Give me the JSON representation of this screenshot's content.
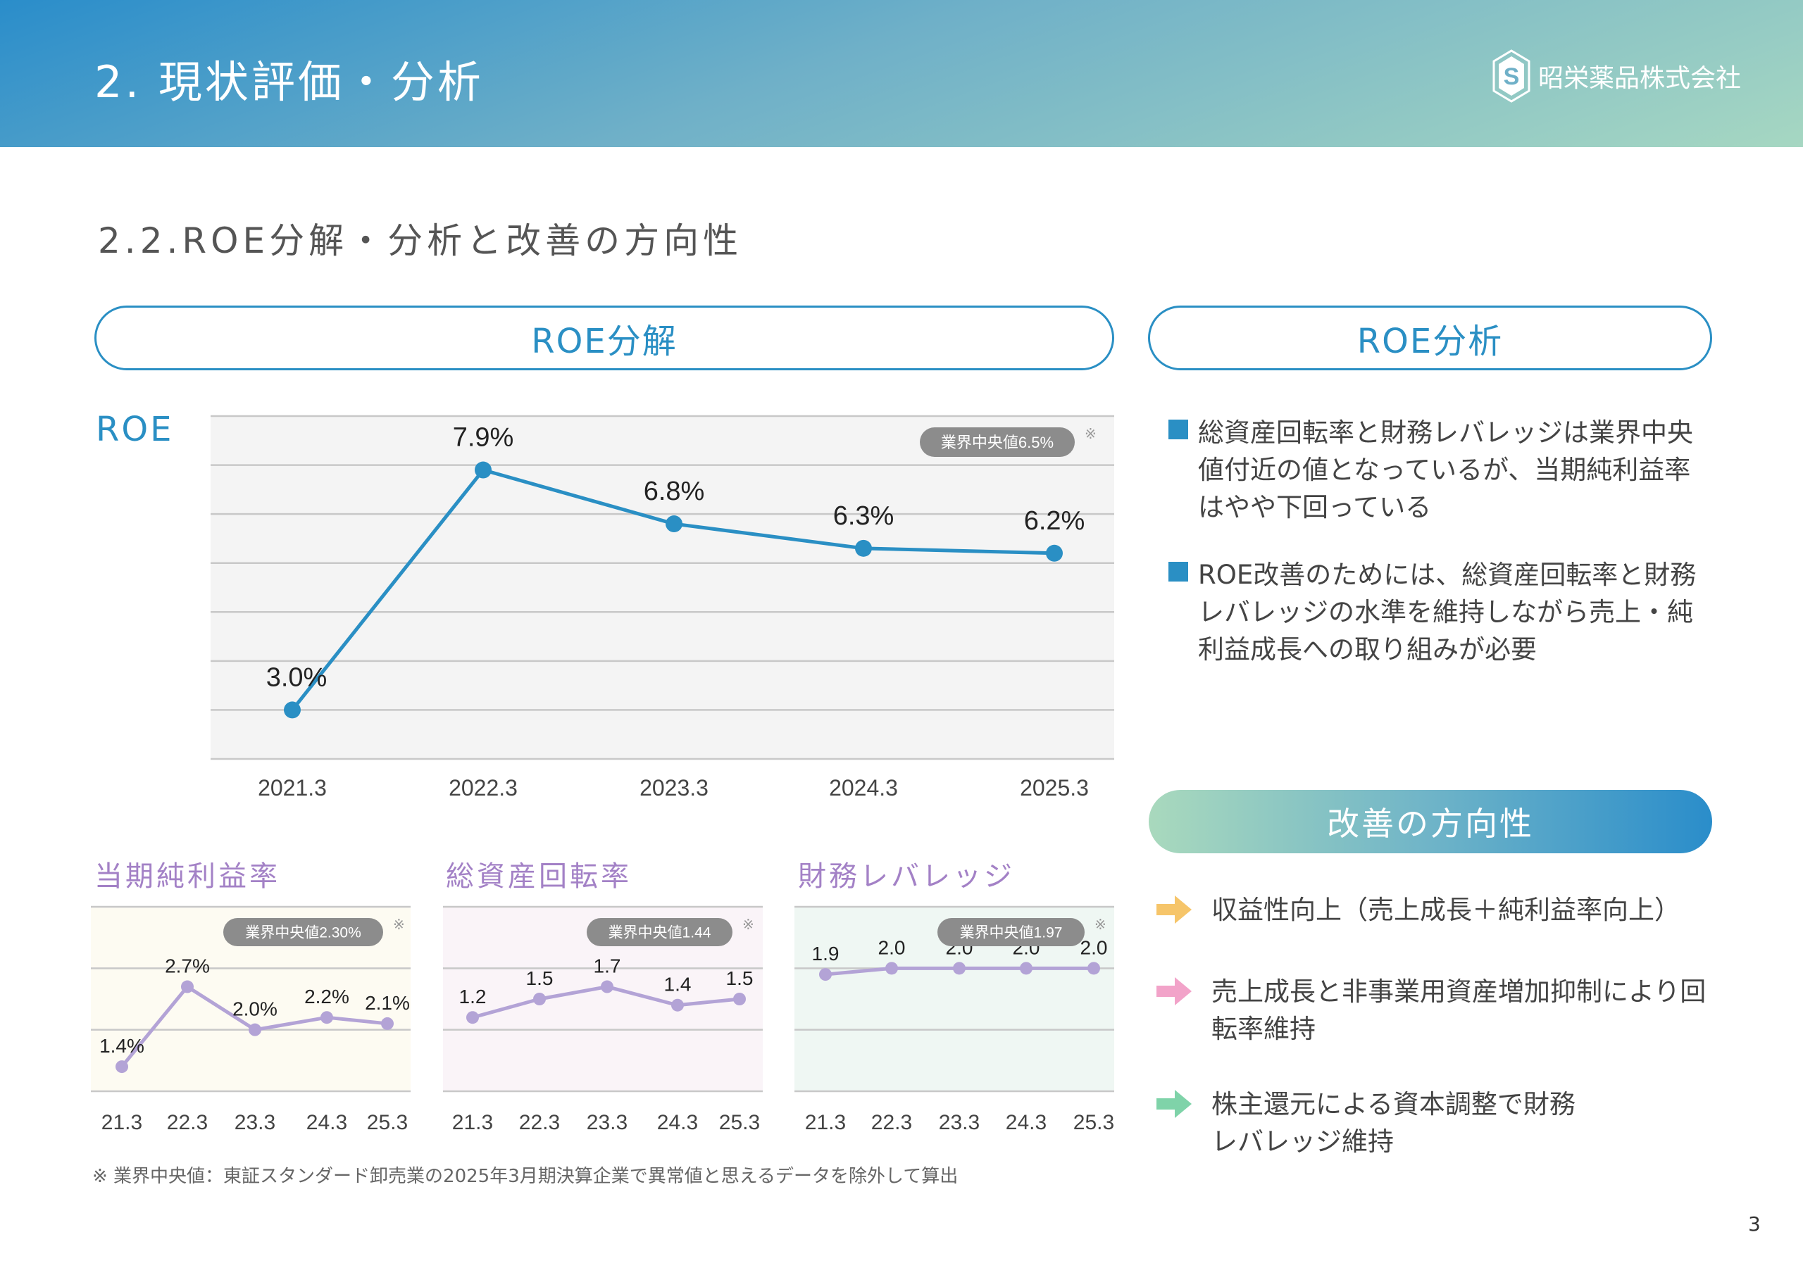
{
  "header": {
    "title": "2. 現状評価・分析",
    "company": "昭栄薬品株式会社",
    "logo_icon": "hexagon-s-logo-icon"
  },
  "subtitle": "2.2.ROE分解・分析と改善の方向性",
  "sections": {
    "decomposition": "ROE分解",
    "analysis": "ROE分析",
    "improvement": "改善の方向性"
  },
  "colors": {
    "accent": "#2a8fc4",
    "sub_line": "#b3a3d6",
    "sub_title": "#a381c6"
  },
  "analysis_bullets": [
    "総資産回転率と財務レバレッジは業界中央値付近の値となっているが、当期純利益率はやや下回っている",
    "ROE改善のためには、総資産回転率と財務レバレッジの水準を維持しながら売上・純利益成長への取り組みが必要"
  ],
  "improvement_items": [
    {
      "text": "収益性向上（売上成長＋純利益率向上）",
      "arrow_color": "#f6c56a"
    },
    {
      "text": "売上成長と非事業用資産増加抑制により回転率維持",
      "arrow_color": "#f2a3c9"
    },
    {
      "text": "株主還元による資本調整で財務レバレッジ維持",
      "arrow_color": "#7fd3a9"
    }
  ],
  "footnote": "※ 業界中央値：東証スタンダード卸売業の2025年3月期決算企業で異常値と思えるデータを除外して算出",
  "page_number": "3",
  "chart_data": [
    {
      "type": "line",
      "title": "ROE",
      "categories": [
        "2021.3",
        "2022.3",
        "2023.3",
        "2024.3",
        "2025.3"
      ],
      "values": [
        3.0,
        7.9,
        6.8,
        6.3,
        6.2
      ],
      "value_labels": [
        "3.0%",
        "7.9%",
        "6.8%",
        "6.3%",
        "6.2%"
      ],
      "ylim": [
        2,
        9
      ],
      "grid": true,
      "benchmark_label": "業界中央値6.5%",
      "note_mark": "※",
      "color": "#2a8fc4",
      "background": "#f4f4f4"
    },
    {
      "type": "line",
      "title": "当期純利益率",
      "categories": [
        "21.3",
        "22.3",
        "23.3",
        "24.3",
        "25.3"
      ],
      "values": [
        1.4,
        2.7,
        2.0,
        2.2,
        2.1
      ],
      "value_labels": [
        "1.4%",
        "2.7%",
        "2.0%",
        "2.2%",
        "2.1%"
      ],
      "ylim": [
        1,
        4
      ],
      "grid": true,
      "benchmark_label": "業界中央値2.30%",
      "note_mark": "※",
      "color": "#b3a3d6",
      "background": "#fdfbf2"
    },
    {
      "type": "line",
      "title": "総資産回転率",
      "categories": [
        "21.3",
        "22.3",
        "23.3",
        "24.3",
        "25.3"
      ],
      "values": [
        1.2,
        1.5,
        1.7,
        1.4,
        1.5
      ],
      "value_labels": [
        "1.2",
        "1.5",
        "1.7",
        "1.4",
        "1.5"
      ],
      "ylim": [
        0,
        3
      ],
      "grid": true,
      "benchmark_label": "業界中央値1.44",
      "note_mark": "※",
      "color": "#b3a3d6",
      "background": "#faf4f8"
    },
    {
      "type": "line",
      "title": "財務レバレッジ",
      "categories": [
        "21.3",
        "22.3",
        "23.3",
        "24.3",
        "25.3"
      ],
      "values": [
        1.9,
        2.0,
        2.0,
        2.0,
        2.0
      ],
      "value_labels": [
        "1.9",
        "2.0",
        "2.0",
        "2.0",
        "2.0"
      ],
      "ylim": [
        0,
        3
      ],
      "grid": true,
      "benchmark_label": "業界中央値1.97",
      "note_mark": "※",
      "color": "#b3a3d6",
      "background": "#eff7f3"
    }
  ]
}
